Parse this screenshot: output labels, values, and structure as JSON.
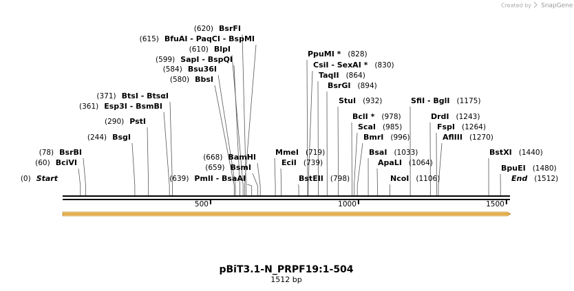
{
  "credit": "Created by",
  "brand": "SnapGene",
  "map": {
    "title": "pBiT3.1-N_PRPF19:1-504",
    "length_label": "1512 bp",
    "length": 1512,
    "ticks": [
      500,
      1000,
      1500
    ],
    "sites": [
      {
        "name": "BsrFI",
        "site": {
          "value": 620,
          "label": "(620)"
        }
      },
      {
        "name": "BfuAI - PaqCI - BspMI",
        "site": {
          "value": 615,
          "label": "(615)"
        }
      },
      {
        "name": "BlpI",
        "site": {
          "value": 610,
          "label": "(610)"
        }
      },
      {
        "name": "SapI - BspQI",
        "site": {
          "value": 599,
          "label": "(599)"
        }
      },
      {
        "name": "Bsu36I",
        "site": {
          "value": 584,
          "label": "(584)"
        }
      },
      {
        "name": "BbsI",
        "site": {
          "value": 580,
          "label": "(580)"
        }
      },
      {
        "name": "BtsI - BtsαI",
        "site": {
          "value": 371,
          "label": "(371)"
        }
      },
      {
        "name": "Esp3I - BsmBI",
        "site": {
          "value": 361,
          "label": "(361)"
        }
      },
      {
        "name": "PstI",
        "site": {
          "value": 290,
          "label": "(290)"
        }
      },
      {
        "name": "BsgI",
        "site": {
          "value": 244,
          "label": "(244)"
        }
      },
      {
        "name": "BamHI",
        "site": {
          "value": 668,
          "label": "(668)"
        }
      },
      {
        "name": "BsrBI",
        "site": {
          "value": 78,
          "label": "(78)"
        }
      },
      {
        "name": "BsmI",
        "site": {
          "value": 659,
          "label": "(659)"
        }
      },
      {
        "name": "BciVI",
        "site": {
          "value": 60,
          "label": "(60)"
        }
      },
      {
        "name": "Start",
        "site": {
          "value": 0,
          "label": "(0)"
        }
      },
      {
        "name": "PmlI - BsaAI",
        "site": {
          "value": 639,
          "label": "(639)"
        }
      },
      {
        "name": "PpuMI *",
        "site": {
          "value": 828,
          "label": "(828)"
        }
      },
      {
        "name": "CsiI - SexAI *",
        "site": {
          "value": 830,
          "label": "(830)"
        }
      },
      {
        "name": "TaqII",
        "site": {
          "value": 864,
          "label": "(864)"
        }
      },
      {
        "name": "BsrGI",
        "site": {
          "value": 894,
          "label": "(894)"
        }
      },
      {
        "name": "StuI",
        "site": {
          "value": 932,
          "label": "(932)"
        }
      },
      {
        "name": "SfiI - BglI",
        "site": {
          "value": 1175,
          "label": "(1175)"
        }
      },
      {
        "name": "BclI *",
        "site": {
          "value": 978,
          "label": "(978)"
        }
      },
      {
        "name": "DrdI",
        "site": {
          "value": 1243,
          "label": "(1243)"
        }
      },
      {
        "name": "ScaI",
        "site": {
          "value": 985,
          "label": "(985)"
        }
      },
      {
        "name": "FspI",
        "site": {
          "value": 1264,
          "label": "(1264)"
        }
      },
      {
        "name": "BmrI",
        "site": {
          "value": 996,
          "label": "(996)"
        }
      },
      {
        "name": "AflIII",
        "site": {
          "value": 1270,
          "label": "(1270)"
        }
      },
      {
        "name": "MmeI",
        "site": {
          "value": 719,
          "label": "(719)"
        }
      },
      {
        "name": "BsaI",
        "site": {
          "value": 1033,
          "label": "(1033)"
        }
      },
      {
        "name": "BstXI",
        "site": {
          "value": 1440,
          "label": "(1440)"
        }
      },
      {
        "name": "EciI",
        "site": {
          "value": 739,
          "label": "(739)"
        }
      },
      {
        "name": "ApaLI",
        "site": {
          "value": 1064,
          "label": "(1064)"
        }
      },
      {
        "name": "BpuEI",
        "site": {
          "value": 1480,
          "label": "(1480)"
        }
      },
      {
        "name": "BstEII",
        "site": {
          "value": 798,
          "label": "(798)"
        }
      },
      {
        "name": "NcoI",
        "site": {
          "value": 1106,
          "label": "(1106)"
        }
      },
      {
        "name": "End",
        "site": {
          "value": 1512,
          "label": "(1512)"
        }
      }
    ]
  }
}
